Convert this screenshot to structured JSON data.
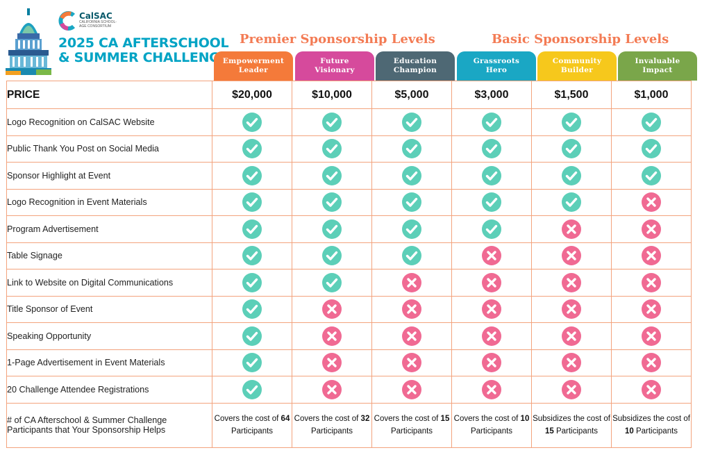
{
  "colors": {
    "accent": "#f37b54",
    "title": "#00a3c4",
    "check": "#5ccfb8",
    "cross": "#f06a93",
    "border": "#f3a37d"
  },
  "logo": {
    "name": "CalSAC",
    "tagline": "CALIFORNIA SCHOOL-AGE CONSORTIUM"
  },
  "event": {
    "title_line1": "2025 CA AFTERSCHOOL",
    "title_line2": "& SUMMER CHALLENGE"
  },
  "groups": [
    {
      "label": "Premier Sponsorship Levels"
    },
    {
      "label": "Basic Sponsorship Levels"
    }
  ],
  "tiers": [
    {
      "line1": "Empowerment",
      "line2": "Leader",
      "color": "#f47a3a"
    },
    {
      "line1": "Future",
      "line2": "Visionary",
      "color": "#d64a9c"
    },
    {
      "line1": "Education",
      "line2": "Champion",
      "color": "#4e6874"
    },
    {
      "line1": "Grassroots",
      "line2": "Hero",
      "color": "#1aa7c4"
    },
    {
      "line1": "Community",
      "line2": "Builder",
      "color": "#f6c81c"
    },
    {
      "line1": "Invaluable",
      "line2": "Impact",
      "color": "#7aa64a"
    }
  ],
  "price": {
    "label": "PRICE",
    "values": [
      "$20,000",
      "$10,000",
      "$5,000",
      "$3,000",
      "$1,500",
      "$1,000"
    ]
  },
  "features": [
    {
      "label": "Logo Recognition on CalSAC Website",
      "included": [
        true,
        true,
        true,
        true,
        true,
        true
      ]
    },
    {
      "label": "Public Thank You Post on Social Media",
      "included": [
        true,
        true,
        true,
        true,
        true,
        true
      ]
    },
    {
      "label": "Sponsor Highlight at Event",
      "included": [
        true,
        true,
        true,
        true,
        true,
        true
      ]
    },
    {
      "label": "Logo Recognition in Event Materials",
      "included": [
        true,
        true,
        true,
        true,
        true,
        false
      ]
    },
    {
      "label": "Program Advertisement",
      "included": [
        true,
        true,
        true,
        true,
        false,
        false
      ]
    },
    {
      "label": "Table Signage",
      "included": [
        true,
        true,
        true,
        false,
        false,
        false
      ]
    },
    {
      "label": "Link to Website on Digital Communications",
      "included": [
        true,
        true,
        false,
        false,
        false,
        false
      ]
    },
    {
      "label": "Title Sponsor of Event",
      "included": [
        true,
        false,
        false,
        false,
        false,
        false
      ]
    },
    {
      "label": "Speaking Opportunity",
      "included": [
        true,
        false,
        false,
        false,
        false,
        false
      ]
    },
    {
      "label": "1-Page Advertisement in Event Materials",
      "included": [
        true,
        false,
        false,
        false,
        false,
        false
      ]
    },
    {
      "label": "20 Challenge Attendee Registrations",
      "included": [
        true,
        false,
        false,
        false,
        false,
        false
      ]
    }
  ],
  "participants": {
    "label_line1": "# of CA Afterschool & Summer Challenge",
    "label_line2": "Participants that Your Sponsorship Helps",
    "cells": [
      {
        "pre": "Covers the cost of",
        "num": "64",
        "post": "Participants"
      },
      {
        "pre": "Covers the cost of",
        "num": "32",
        "post": "Participants"
      },
      {
        "pre": "Covers the cost of",
        "num": "15",
        "post": "Participants"
      },
      {
        "pre": "Covers the cost of",
        "num": "10",
        "post": "Participants"
      },
      {
        "pre": "Subsidizes the cost of",
        "num": "15",
        "post": "Participants"
      },
      {
        "pre": "Subsidizes the cost of",
        "num": "10",
        "post": "Participants"
      }
    ]
  }
}
